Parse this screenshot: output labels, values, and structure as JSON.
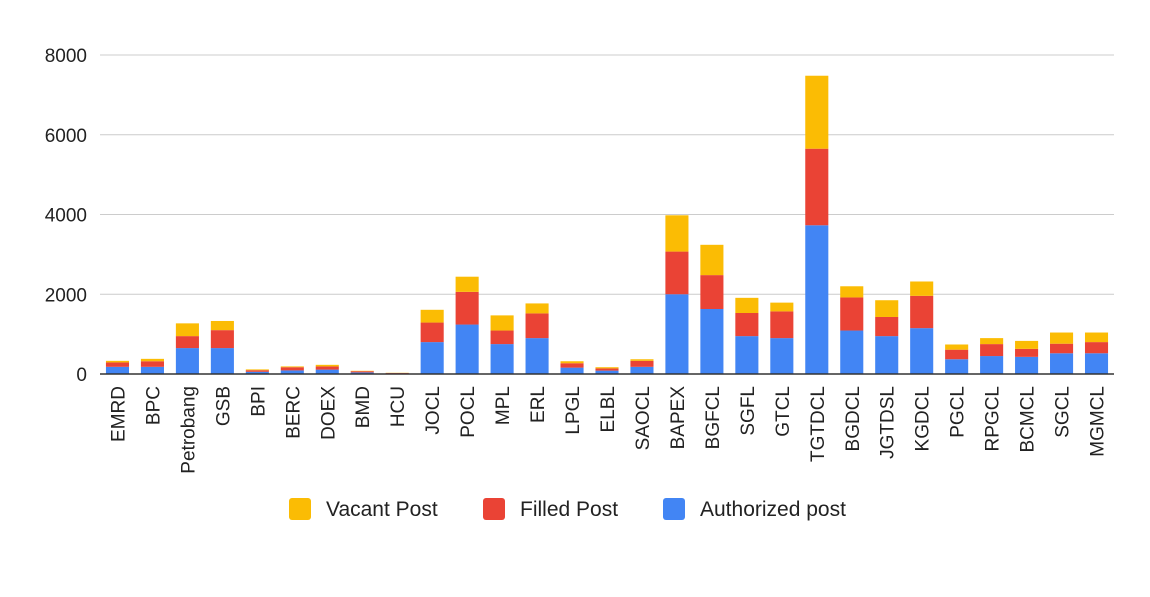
{
  "chart_data": {
    "type": "bar",
    "stacked": true,
    "title": "",
    "xlabel": "",
    "ylabel": "",
    "ylim": [
      0,
      8000
    ],
    "yticks": [
      0,
      2000,
      4000,
      6000,
      8000
    ],
    "grid": true,
    "legend_position": "bottom",
    "categories": [
      "EMRD",
      "BPC",
      "Petrobang",
      "GSB",
      "BPI",
      "BERC",
      "DOEX",
      "BMD",
      "HCU",
      "JOCL",
      "POCL",
      "MPL",
      "ERL",
      "LPGL",
      "ELBL",
      "SAOCL",
      "BAPEX",
      "BGFCL",
      "SGFL",
      "GTCL",
      "TGTDCL",
      "BGDCL",
      "JGTDSL",
      "KGDCL",
      "PGCL",
      "RPGCL",
      "BCMCL",
      "SGCL",
      "MGMCL"
    ],
    "series": [
      {
        "name": "Authorized post",
        "color": "#4285F4",
        "values": [
          180,
          180,
          650,
          650,
          55,
          90,
          110,
          40,
          15,
          800,
          1240,
          750,
          900,
          160,
          85,
          180,
          2000,
          1630,
          950,
          900,
          3730,
          1090,
          950,
          1150,
          370,
          450,
          430,
          520,
          520
        ]
      },
      {
        "name": "Filled Post",
        "color": "#EA4335",
        "values": [
          110,
          140,
          300,
          450,
          40,
          80,
          80,
          30,
          10,
          490,
          820,
          340,
          620,
          110,
          55,
          150,
          1070,
          850,
          580,
          670,
          1920,
          830,
          480,
          810,
          240,
          300,
          200,
          240,
          280
        ]
      },
      {
        "name": "Vacant Post",
        "color": "#FBBC04",
        "values": [
          40,
          60,
          320,
          230,
          20,
          20,
          40,
          10,
          5,
          320,
          380,
          380,
          250,
          50,
          30,
          40,
          910,
          760,
          380,
          220,
          1830,
          280,
          420,
          360,
          130,
          150,
          200,
          280,
          240
        ]
      }
    ],
    "legend_order": [
      "Vacant Post",
      "Filled Post",
      "Authorized post"
    ]
  }
}
